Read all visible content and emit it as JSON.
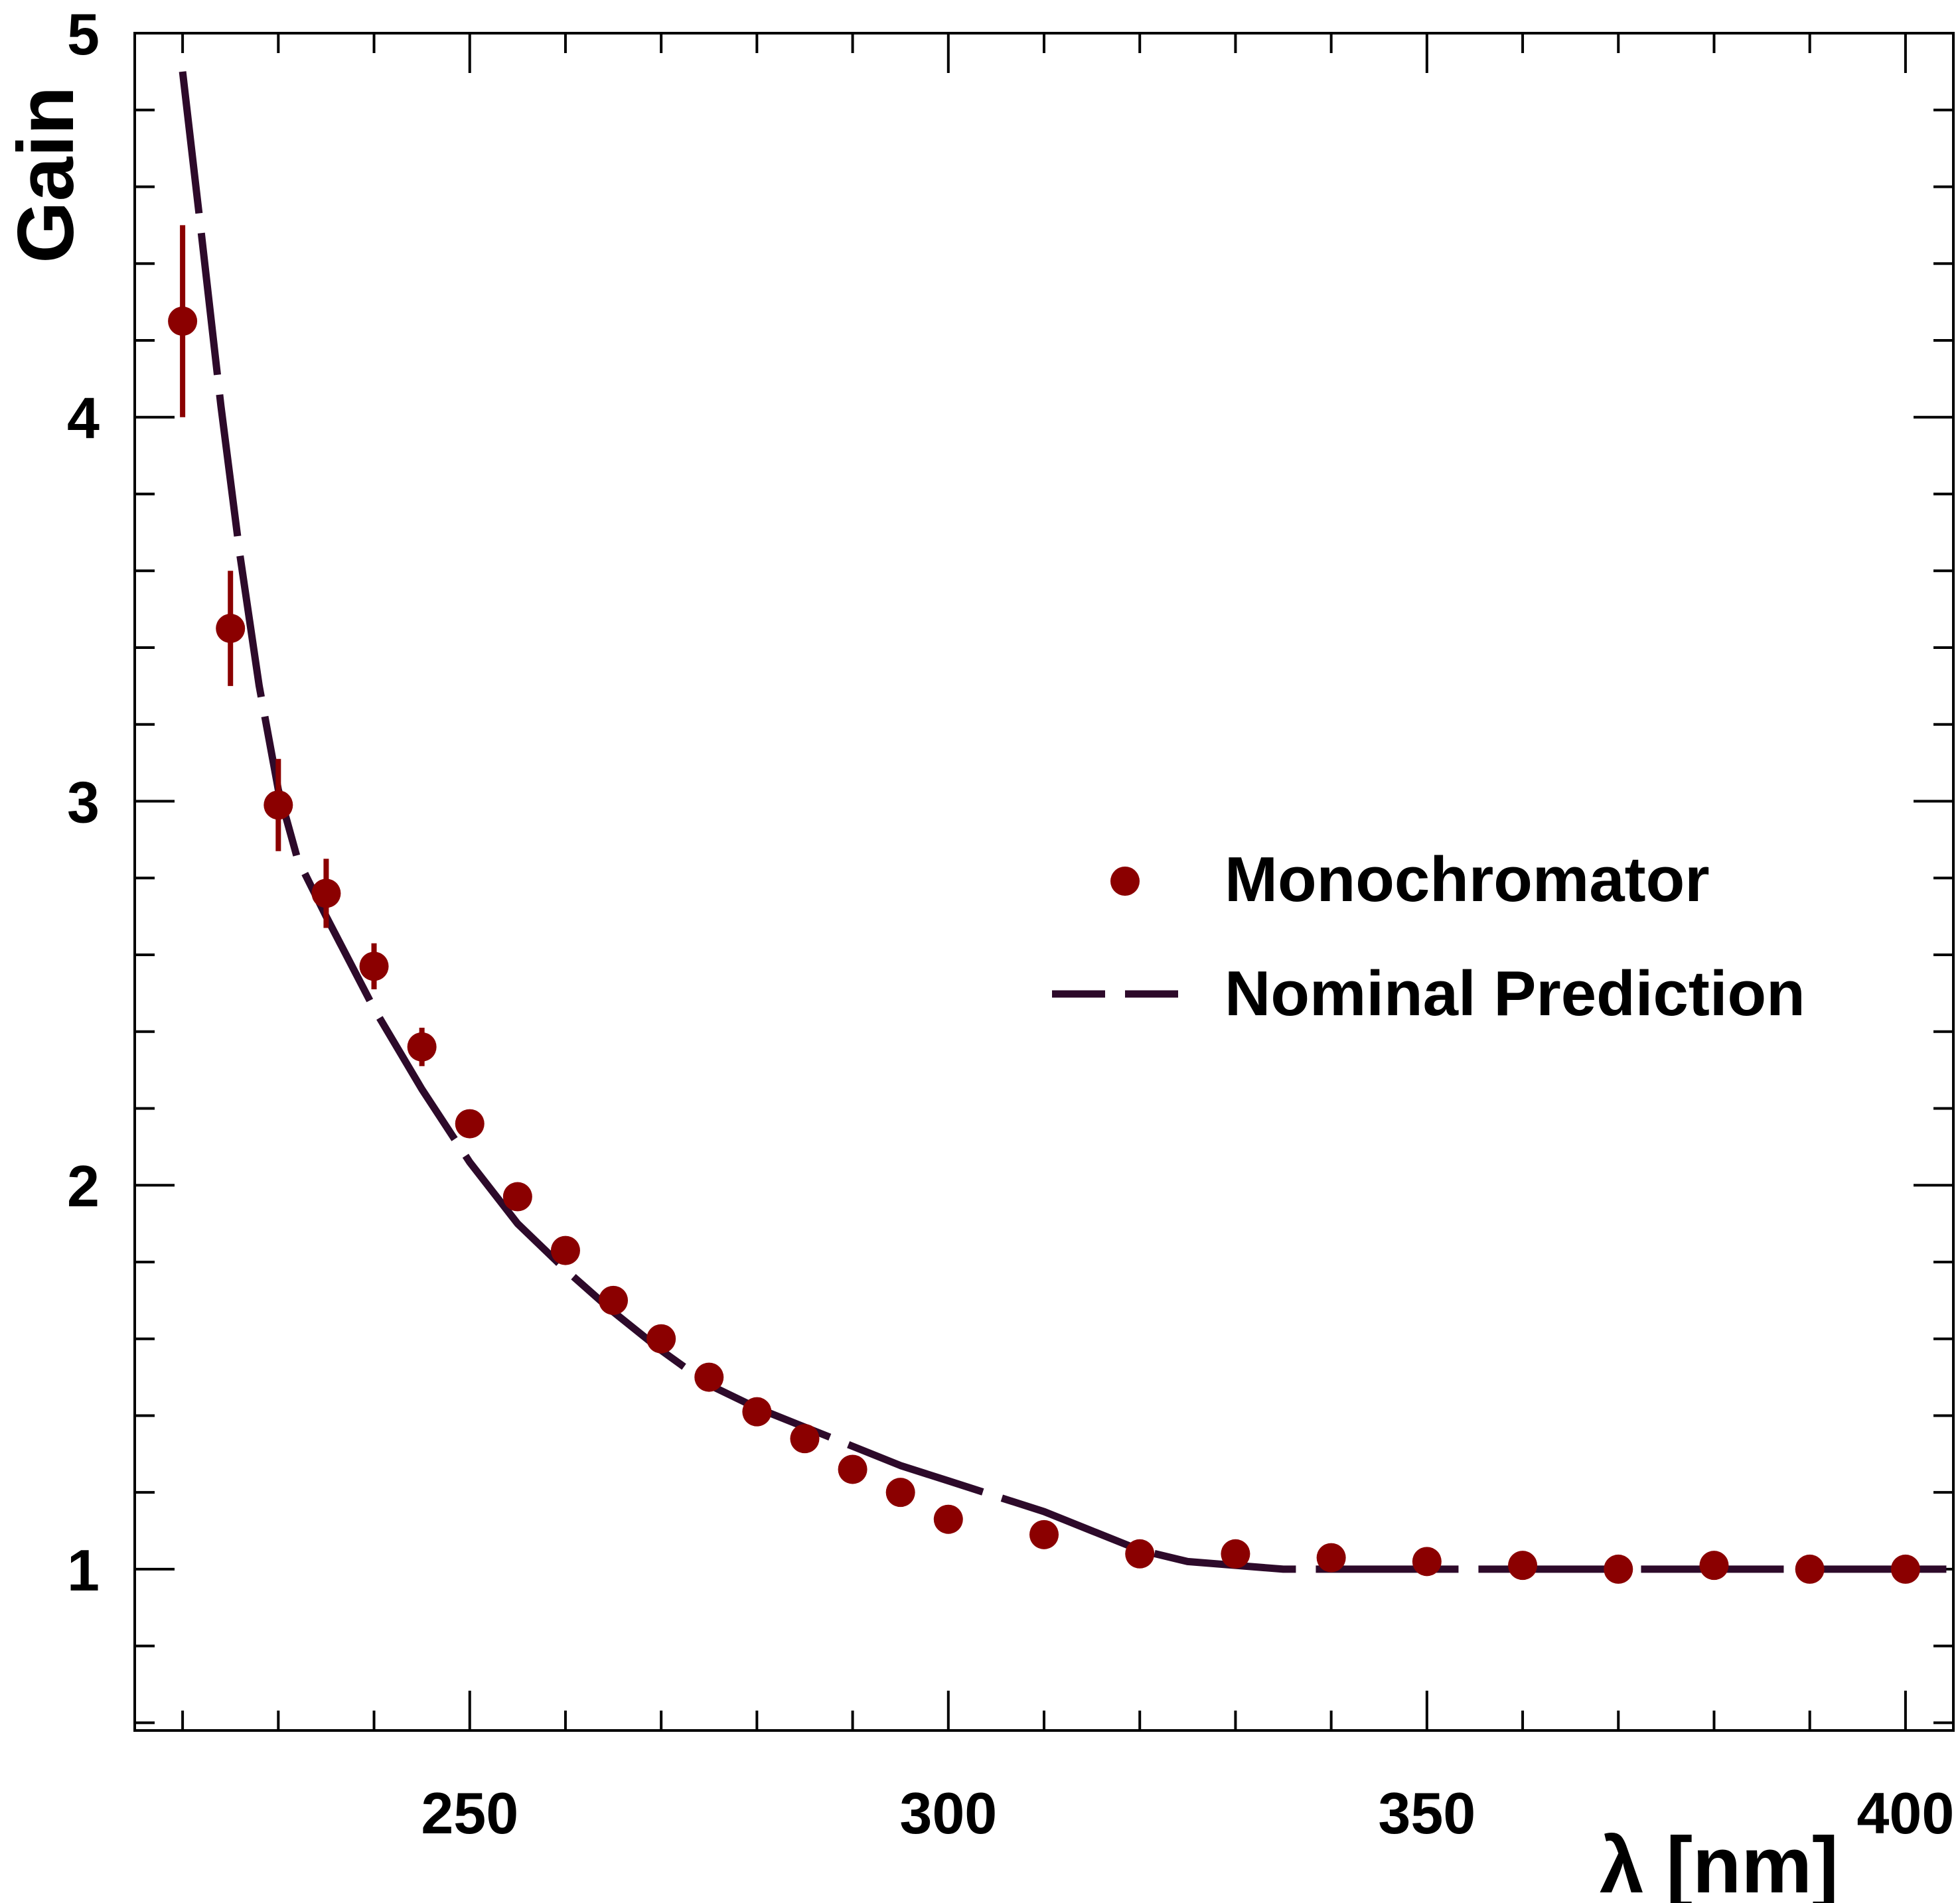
{
  "chart_data": {
    "type": "scatter",
    "title": "",
    "xlabel": "λ [nm]",
    "ylabel": "Gain",
    "xlim": [
      215,
      405
    ],
    "ylim": [
      0.58,
      5.0
    ],
    "xticks": [
      250,
      300,
      350,
      400
    ],
    "yticks": [
      1,
      2,
      3,
      4,
      5
    ],
    "grid": false,
    "legend_position": "right-middle",
    "colors": {
      "points": "#8b0000",
      "curve": "#2d0a2a"
    },
    "series": [
      {
        "name": "Monochromator",
        "style": "markers",
        "x": [
          220,
          225,
          230,
          235,
          240,
          245,
          250,
          255,
          260,
          265,
          270,
          275,
          280,
          285,
          290,
          295,
          300,
          310,
          320,
          330,
          340,
          350,
          360,
          370,
          380,
          390,
          400
        ],
        "y": [
          4.25,
          3.45,
          2.99,
          2.76,
          2.57,
          2.36,
          2.16,
          1.97,
          1.83,
          1.7,
          1.6,
          1.5,
          1.41,
          1.34,
          1.26,
          1.2,
          1.13,
          1.09,
          1.04,
          1.04,
          1.03,
          1.02,
          1.01,
          1.0,
          1.01,
          1.0,
          1.0
        ],
        "yerr": [
          0.25,
          0.15,
          0.12,
          0.09,
          0.06,
          0.05,
          0.03,
          0.03,
          0.02,
          0.02,
          0.02,
          0.02,
          0.02,
          0.02,
          0.02,
          0.02,
          0.02,
          0.02,
          0.02,
          0.02,
          0.02,
          0.02,
          0.02,
          0.02,
          0.02,
          0.02,
          0.02
        ]
      },
      {
        "name": "Nominal Prediction",
        "style": "dashed-line",
        "x": [
          220,
          222,
          224,
          226,
          228,
          230,
          232,
          235,
          240,
          245,
          250,
          255,
          260,
          265,
          270,
          275,
          280,
          285,
          290,
          295,
          300,
          305,
          310,
          315,
          320,
          325,
          330,
          335,
          340,
          350,
          360,
          370,
          380,
          390,
          400,
          405
        ],
        "y": [
          4.9,
          4.47,
          4.03,
          3.64,
          3.3,
          3.03,
          2.85,
          2.7,
          2.46,
          2.25,
          2.06,
          1.9,
          1.78,
          1.67,
          1.57,
          1.48,
          1.42,
          1.37,
          1.32,
          1.27,
          1.23,
          1.19,
          1.15,
          1.1,
          1.05,
          1.02,
          1.01,
          1.0,
          1.0,
          1.0,
          1.0,
          1.0,
          1.0,
          1.0,
          1.0,
          1.0
        ]
      }
    ]
  }
}
